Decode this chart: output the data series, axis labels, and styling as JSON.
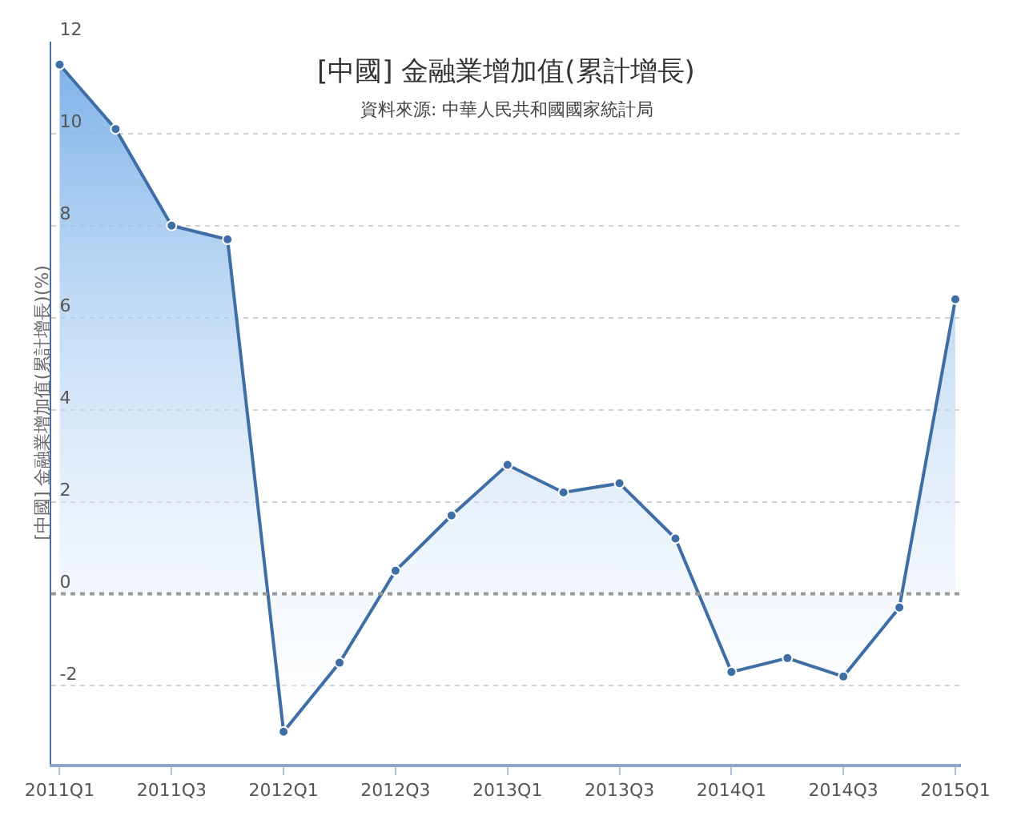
{
  "chart_data": {
    "type": "area",
    "title": "[中國] 金融業增加值(累計增長)",
    "subtitle": "資料來源: 中華人民共和國國家統計局",
    "ylabel": "[中國] 金融業增加值(累計增長)(%)",
    "categories": [
      "2011Q1",
      null,
      "2011Q3",
      null,
      "2012Q1",
      null,
      "2012Q3",
      null,
      "2013Q1",
      null,
      "2013Q3",
      null,
      "2014Q1",
      null,
      "2014Q3",
      null,
      "2015Q1"
    ],
    "series": [
      {
        "color": "#3f6ea6",
        "values": [
          11.5,
          10.1,
          8.0,
          7.7,
          -3.0,
          -1.5,
          0.5,
          1.7,
          2.8,
          2.2,
          2.4,
          1.2,
          -1.7,
          -1.4,
          -1.8,
          -0.3,
          6.4
        ]
      }
    ],
    "ylim": [
      -3.7,
      12
    ],
    "yticks": [
      -2,
      0,
      2,
      4,
      6,
      8,
      10,
      12
    ],
    "grid": "y",
    "marker": "circle",
    "line_style": "solid",
    "ref_lines": [
      {
        "axis": "y",
        "value": 0,
        "color": "#999999",
        "line_style": "dotted"
      }
    ]
  }
}
